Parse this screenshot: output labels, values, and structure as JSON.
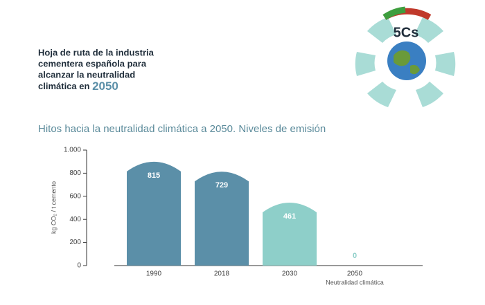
{
  "header": {
    "lines": [
      "Hoja de ruta de la industria",
      "cementera española para",
      "alcanzar la neutralidad",
      "climática en"
    ],
    "year": "2050"
  },
  "logo": {
    "text": "5Cs"
  },
  "chart_data": {
    "type": "bar",
    "title": "Hitos hacia la neutralidad climática a 2050. Niveles de emisión",
    "ylabel": "kg CO₂ / t cemento",
    "categories": [
      "1990",
      "2018",
      "2030",
      "2050"
    ],
    "sublabels": [
      null,
      null,
      null,
      "Neutralidad climática"
    ],
    "values": [
      815,
      729,
      461,
      0
    ],
    "colors": [
      "#5b8fa8",
      "#5b8fa8",
      "#8ecfc9",
      "#8ecfc9"
    ],
    "ylim": [
      0,
      1000
    ],
    "yticks": [
      0,
      200,
      400,
      600,
      800,
      {
        "value": 1000,
        "label": "1.000"
      }
    ]
  }
}
